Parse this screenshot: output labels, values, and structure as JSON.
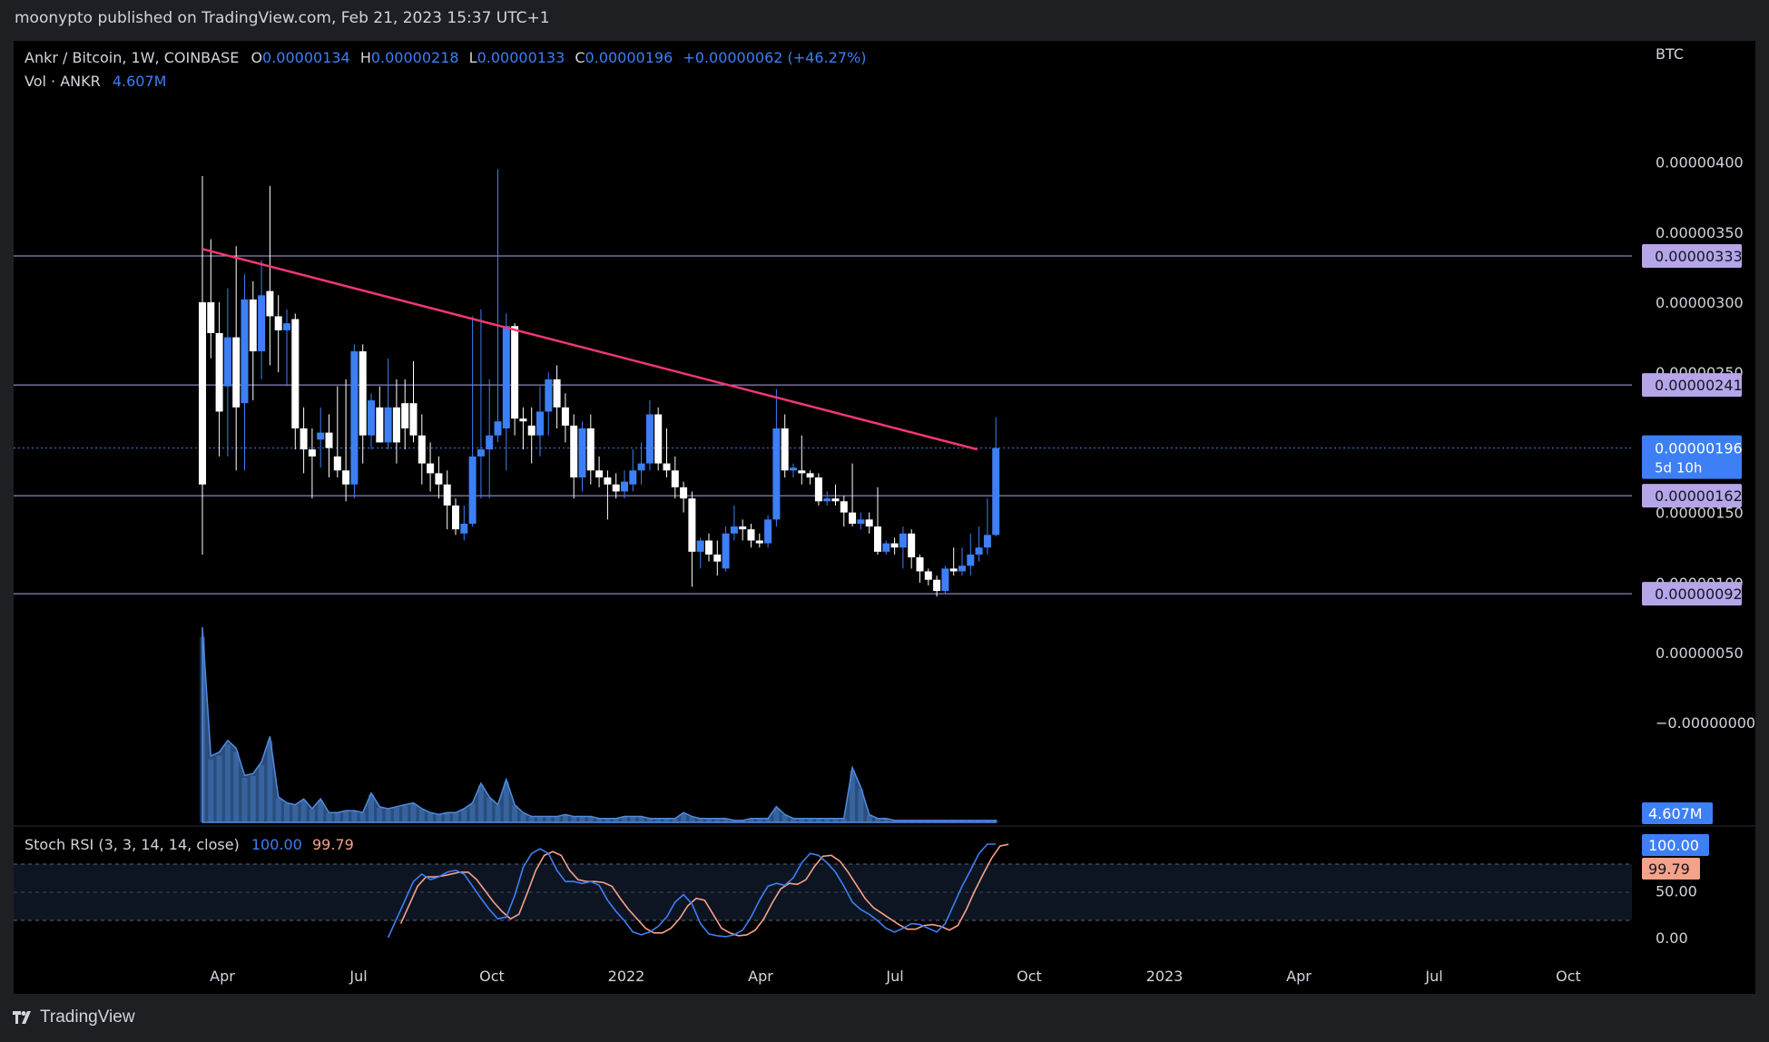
{
  "header": {
    "publish_text": "moonypto published on TradingView.com, Feb 21, 2023 15:37 UTC+1"
  },
  "legend": {
    "symbol": "Ankr / Bitcoin, 1W, COINBASE",
    "o_label": "O",
    "o_value": "0.00000134",
    "h_label": "H",
    "h_value": "0.00000218",
    "l_label": "L",
    "l_value": "0.00000133",
    "c_label": "C",
    "c_value": "0.00000196",
    "change": "+0.00000062 (+46.27%)",
    "vol_label": "Vol · ANKR",
    "vol_value": "4.607M",
    "rsi_label": "Stoch RSI (3, 3, 14, 14, close)",
    "rsi_k": "100.00",
    "rsi_d": "99.79"
  },
  "axis": {
    "currency": "BTC",
    "price_ticks": [
      "0.00000400",
      "0.00000350",
      "0.00000300",
      "0.00000250",
      "0.00000150",
      "0.00000100",
      "0.00000050",
      "−0.00000000"
    ],
    "rsi_ticks": [
      "50.00",
      "0.00"
    ],
    "time_ticks": [
      "Apr",
      "Jul",
      "Oct",
      "2022",
      "Apr",
      "Jul",
      "Oct",
      "2023",
      "Apr",
      "Jul",
      "Oct"
    ]
  },
  "levels": {
    "labels": [
      "0.00000333",
      "0.00000241",
      "0.00000162",
      "0.00000092"
    ],
    "current_price": "0.00000196",
    "countdown": "5d 10h",
    "vol_badge": "4.607M",
    "rsi_k_badge": "100.00",
    "rsi_d_badge": "99.79"
  },
  "brand": {
    "name": "TradingView"
  },
  "colors": {
    "up": "#3d7ff5",
    "down": "#ffffff",
    "trendline": "#f23773",
    "level_line": "#b1a6e6",
    "level_badge": "#b6a5e8",
    "rsi_k": "#3d7ff5",
    "rsi_d": "#f6a18a",
    "volume": "#4f8ce0"
  },
  "chart_data": {
    "type": "candlestick",
    "title": "Ankr / Bitcoin, 1W, COINBASE",
    "y_unit": "BTC",
    "ylim": [
      -4e-07,
      4.25e-06
    ],
    "x_start": "2021-03-22",
    "interval": "1W",
    "candles": [
      [
        3e-06,
        3.9e-06,
        1.2e-06,
        1.7e-06
      ],
      [
        3e-06,
        3.45e-06,
        2.6e-06,
        2.78e-06
      ],
      [
        2.78e-06,
        3e-06,
        1.9e-06,
        2.22e-06
      ],
      [
        2.4e-06,
        3.1e-06,
        1.9e-06,
        2.75e-06
      ],
      [
        2.75e-06,
        3.4e-06,
        1.8e-06,
        2.25e-06
      ],
      [
        2.28e-06,
        3.2e-06,
        1.8e-06,
        3.02e-06
      ],
      [
        3.02e-06,
        3.15e-06,
        2.3e-06,
        2.65e-06
      ],
      [
        2.65e-06,
        3.3e-06,
        2.45e-06,
        3.05e-06
      ],
      [
        3.08e-06,
        3.83e-06,
        2.55e-06,
        2.9e-06
      ],
      [
        2.9e-06,
        3.05e-06,
        2.5e-06,
        2.8e-06
      ],
      [
        2.8e-06,
        2.95e-06,
        2.4e-06,
        2.85e-06
      ],
      [
        2.88e-06,
        2.92e-06,
        1.95e-06,
        2.1e-06
      ],
      [
        2.1e-06,
        2.25e-06,
        1.78e-06,
        1.95e-06
      ],
      [
        1.95e-06,
        2.1e-06,
        1.6e-06,
        1.9e-06
      ],
      [
        2.02e-06,
        2.25e-06,
        1.82e-06,
        2.07e-06
      ],
      [
        2.07e-06,
        2.2e-06,
        1.75e-06,
        1.96e-06
      ],
      [
        1.9e-06,
        2.4e-06,
        1.75e-06,
        1.8e-06
      ],
      [
        1.8e-06,
        2.45e-06,
        1.58e-06,
        1.7e-06
      ],
      [
        1.7e-06,
        2.7e-06,
        1.6e-06,
        2.65e-06
      ],
      [
        2.65e-06,
        2.7e-06,
        1.85e-06,
        2.05e-06
      ],
      [
        2.05e-06,
        2.35e-06,
        1.95e-06,
        2.3e-06
      ],
      [
        2.25e-06,
        2.4e-06,
        2e-06,
        2e-06
      ],
      [
        2e-06,
        2.6e-06,
        1.95e-06,
        2.25e-06
      ],
      [
        2.25e-06,
        2.45e-06,
        1.85e-06,
        2e-06
      ],
      [
        2.28e-06,
        2.45e-06,
        1.95e-06,
        2.1e-06
      ],
      [
        2.28e-06,
        2.58e-06,
        2e-06,
        2.05e-06
      ],
      [
        2.05e-06,
        2.2e-06,
        1.7e-06,
        1.85e-06
      ],
      [
        1.85e-06,
        2e-06,
        1.65e-06,
        1.78e-06
      ],
      [
        1.78e-06,
        1.9e-06,
        1.6e-06,
        1.7e-06
      ],
      [
        1.7e-06,
        1.8e-06,
        1.38e-06,
        1.55e-06
      ],
      [
        1.55e-06,
        1.6e-06,
        1.34e-06,
        1.38e-06
      ],
      [
        1.35e-06,
        1.55e-06,
        1.3e-06,
        1.42e-06
      ],
      [
        1.42e-06,
        2.9e-06,
        1.4e-06,
        1.9e-06
      ],
      [
        1.9e-06,
        2.95e-06,
        1.6e-06,
        1.95e-06
      ],
      [
        1.95e-06,
        2.45e-06,
        1.6e-06,
        2.05e-06
      ],
      [
        2.05e-06,
        3.95e-06,
        2e-06,
        2.15e-06
      ],
      [
        2.1e-06,
        2.92e-06,
        1.8e-06,
        2.83e-06
      ],
      [
        2.83e-06,
        2.85e-06,
        2.05e-06,
        2.17e-06
      ],
      [
        2.17e-06,
        2.25e-06,
        1.95e-06,
        2.15e-06
      ],
      [
        2.12e-06,
        2.25e-06,
        1.85e-06,
        2.05e-06
      ],
      [
        2.05e-06,
        2.4e-06,
        1.9e-06,
        2.22e-06
      ],
      [
        2.22e-06,
        2.5e-06,
        2.05e-06,
        2.45e-06
      ],
      [
        2.45e-06,
        2.55e-06,
        2.1e-06,
        2.25e-06
      ],
      [
        2.25e-06,
        2.35e-06,
        2e-06,
        2.12e-06
      ],
      [
        2.12e-06,
        2.2e-06,
        1.6e-06,
        1.75e-06
      ],
      [
        1.75e-06,
        2.15e-06,
        1.65e-06,
        2.1e-06
      ],
      [
        2.1e-06,
        2.2e-06,
        1.7e-06,
        1.8e-06
      ],
      [
        1.8e-06,
        1.9e-06,
        1.68e-06,
        1.75e-06
      ],
      [
        1.75e-06,
        1.8e-06,
        1.45e-06,
        1.7e-06
      ],
      [
        1.7e-06,
        1.78e-06,
        1.6e-06,
        1.65e-06
      ],
      [
        1.65e-06,
        1.8e-06,
        1.6e-06,
        1.72e-06
      ],
      [
        1.7e-06,
        1.95e-06,
        1.65e-06,
        1.8e-06
      ],
      [
        1.8e-06,
        2e-06,
        1.7e-06,
        1.85e-06
      ],
      [
        1.85e-06,
        2.3e-06,
        1.8e-06,
        2.2e-06
      ],
      [
        2.2e-06,
        2.25e-06,
        1.8e-06,
        1.85e-06
      ],
      [
        1.85e-06,
        2.1e-06,
        1.75e-06,
        1.8e-06
      ],
      [
        1.8e-06,
        1.9e-06,
        1.6e-06,
        1.68e-06
      ],
      [
        1.68e-06,
        1.72e-06,
        1.5e-06,
        1.6e-06
      ],
      [
        1.6e-06,
        1.65e-06,
        9.7e-07,
        1.22e-06
      ],
      [
        1.22e-06,
        1.32e-06,
        1.1e-06,
        1.3e-06
      ],
      [
        1.3e-06,
        1.35e-06,
        1.15e-06,
        1.2e-06
      ],
      [
        1.2e-06,
        1.3e-06,
        1.05e-06,
        1.15e-06
      ],
      [
        1.1e-06,
        1.4e-06,
        1.08e-06,
        1.35e-06
      ],
      [
        1.35e-06,
        1.55e-06,
        1.3e-06,
        1.4e-06
      ],
      [
        1.4e-06,
        1.45e-06,
        1.3e-06,
        1.38e-06
      ],
      [
        1.38e-06,
        1.42e-06,
        1.25e-06,
        1.3e-06
      ],
      [
        1.3e-06,
        1.35e-06,
        1.25e-06,
        1.28e-06
      ],
      [
        1.28e-06,
        1.48e-06,
        1.25e-06,
        1.45e-06
      ],
      [
        1.45e-06,
        2.38e-06,
        1.4e-06,
        2.1e-06
      ],
      [
        2.1e-06,
        2.2e-06,
        1.75e-06,
        1.8e-06
      ],
      [
        1.8e-06,
        1.85e-06,
        1.75e-06,
        1.82e-06
      ],
      [
        1.8e-06,
        2.05e-06,
        1.7e-06,
        1.78e-06
      ],
      [
        1.78e-06,
        1.8e-06,
        1.7e-06,
        1.75e-06
      ],
      [
        1.75e-06,
        1.78e-06,
        1.55e-06,
        1.58e-06
      ],
      [
        1.58e-06,
        1.65e-06,
        1.55e-06,
        1.6e-06
      ],
      [
        1.6e-06,
        1.7e-06,
        1.55e-06,
        1.58e-06
      ],
      [
        1.58e-06,
        1.62e-06,
        1.4e-06,
        1.5e-06
      ],
      [
        1.5e-06,
        1.85e-06,
        1.4e-06,
        1.42e-06
      ],
      [
        1.42e-06,
        1.5e-06,
        1.38e-06,
        1.45e-06
      ],
      [
        1.45e-06,
        1.5e-06,
        1.35e-06,
        1.4e-06
      ],
      [
        1.4e-06,
        1.68e-06,
        1.2e-06,
        1.22e-06
      ],
      [
        1.22e-06,
        1.3e-06,
        1.2e-06,
        1.28e-06
      ],
      [
        1.28e-06,
        1.32e-06,
        1.2e-06,
        1.25e-06
      ],
      [
        1.25e-06,
        1.4e-06,
        1.1e-06,
        1.35e-06
      ],
      [
        1.35e-06,
        1.38e-06,
        1.1e-06,
        1.18e-06
      ],
      [
        1.18e-06,
        1.2e-06,
        1e-06,
        1.08e-06
      ],
      [
        1.08e-06,
        1.1e-06,
        9.8e-07,
        1.02e-06
      ],
      [
        1.02e-06,
        1.05e-06,
        9e-07,
        9.4e-07
      ],
      [
        9.4e-07,
        1.12e-06,
        9.2e-07,
        1.1e-06
      ],
      [
        1.1e-06,
        1.25e-06,
        1.05e-06,
        1.08e-06
      ],
      [
        1.08e-06,
        1.25e-06,
        1.05e-06,
        1.12e-06
      ],
      [
        1.12e-06,
        1.35e-06,
        1.05e-06,
        1.2e-06
      ],
      [
        1.2e-06,
        1.4e-06,
        1.15e-06,
        1.25e-06
      ],
      [
        1.25e-06,
        1.6e-06,
        1.2e-06,
        1.34e-06
      ],
      [
        1.34e-06,
        2.18e-06,
        1.33e-06,
        1.96e-06
      ]
    ],
    "volume_relative": [
      1.0,
      0.34,
      0.36,
      0.42,
      0.38,
      0.24,
      0.25,
      0.31,
      0.44,
      0.13,
      0.1,
      0.09,
      0.12,
      0.07,
      0.12,
      0.05,
      0.05,
      0.06,
      0.06,
      0.05,
      0.15,
      0.08,
      0.07,
      0.08,
      0.09,
      0.1,
      0.07,
      0.05,
      0.04,
      0.05,
      0.05,
      0.07,
      0.1,
      0.2,
      0.13,
      0.09,
      0.22,
      0.09,
      0.05,
      0.03,
      0.03,
      0.03,
      0.03,
      0.04,
      0.03,
      0.03,
      0.03,
      0.02,
      0.02,
      0.02,
      0.03,
      0.03,
      0.03,
      0.02,
      0.02,
      0.02,
      0.02,
      0.05,
      0.03,
      0.02,
      0.02,
      0.02,
      0.02,
      0.01,
      0.01,
      0.02,
      0.02,
      0.02,
      0.08,
      0.04,
      0.02,
      0.02,
      0.02,
      0.02,
      0.02,
      0.02,
      0.02,
      0.28,
      0.18,
      0.04,
      0.02,
      0.02,
      0.01,
      0.01,
      0.01,
      0.01,
      0.01,
      0.01,
      0.01,
      0.01,
      0.01,
      0.01,
      0.01,
      0.01,
      0.01
    ],
    "stoch_rsi_k": [
      0,
      20,
      40,
      60,
      68,
      62,
      65,
      70,
      72,
      68,
      55,
      42,
      30,
      20,
      22,
      45,
      75,
      90,
      95,
      90,
      72,
      60,
      60,
      58,
      60,
      56,
      40,
      28,
      18,
      6,
      3,
      6,
      12,
      22,
      38,
      46,
      36,
      15,
      4,
      2,
      1,
      3,
      8,
      22,
      40,
      55,
      58,
      56,
      64,
      80,
      90,
      88,
      80,
      70,
      55,
      38,
      30,
      25,
      18,
      10,
      6,
      10,
      15,
      14,
      10,
      6,
      15,
      35,
      55,
      72,
      90,
      100,
      100
    ],
    "stoch_rsi_d": [
      15,
      35,
      55,
      65,
      65,
      66,
      68,
      70,
      70,
      62,
      50,
      38,
      28,
      20,
      25,
      48,
      72,
      88,
      92,
      88,
      72,
      62,
      60,
      60,
      59,
      55,
      42,
      30,
      20,
      10,
      5,
      5,
      10,
      20,
      34,
      42,
      40,
      25,
      10,
      5,
      2,
      3,
      8,
      20,
      37,
      52,
      58,
      57,
      62,
      76,
      87,
      88,
      82,
      70,
      56,
      42,
      32,
      26,
      20,
      14,
      9,
      9,
      13,
      14,
      12,
      8,
      13,
      30,
      50,
      68,
      85,
      98,
      99.79
    ],
    "levels": [
      3.33e-06,
      2.41e-06,
      1.62e-06,
      9.2e-07
    ],
    "trendline": [
      [
        0,
        3.38e-06
      ],
      [
        91.8,
        1.95e-06
      ]
    ]
  }
}
